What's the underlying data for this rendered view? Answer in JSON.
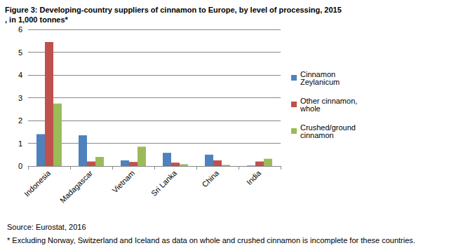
{
  "chart_data": {
    "type": "bar",
    "title": "Figure 3: Developing-country suppliers of cinnamon to Europe, by level of processing, 2015, in 1,000 tonnes*",
    "categories": [
      "Indonesia",
      "Madagascar",
      "Vietnam",
      "Sri Lanka",
      "China",
      "India"
    ],
    "series": [
      {
        "name": "Cinnamon Zeylanicum",
        "color": "#4f81bd",
        "values": [
          1.4,
          1.35,
          0.25,
          0.58,
          0.5,
          0.02
        ]
      },
      {
        "name": "Other cinnamon, whole",
        "color": "#c0504d",
        "values": [
          5.45,
          0.2,
          0.18,
          0.15,
          0.25,
          0.2
        ]
      },
      {
        "name": "Crushed/ground cinnamon",
        "color": "#9bbb59",
        "values": [
          2.75,
          0.4,
          0.85,
          0.08,
          0.05,
          0.32
        ]
      }
    ],
    "ylim": [
      0,
      6
    ],
    "yticks": [
      0,
      1,
      2,
      3,
      4,
      5,
      6
    ],
    "grid": true,
    "legend": "right",
    "annotations": [
      "Source: Eurostat, 2016",
      "* Excluding Norway, Switzerland and Iceland as data on whole and crushed cinnamon is incomplete for these countries."
    ]
  }
}
